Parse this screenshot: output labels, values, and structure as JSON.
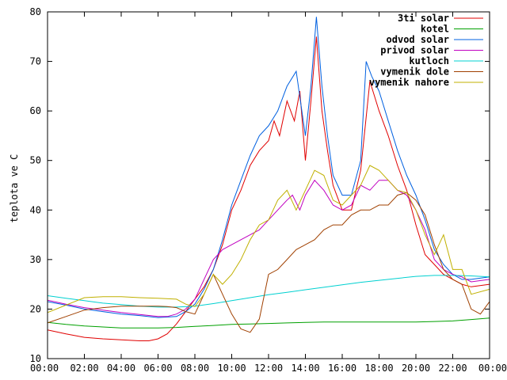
{
  "chart_data": {
    "type": "line",
    "title": "",
    "xlabel": "",
    "ylabel": "teplota ve C",
    "xlim": [
      0,
      24
    ],
    "ylim": [
      10,
      80
    ],
    "grid": false,
    "legend_position": "top-right",
    "x_ticks": [
      "00:00",
      "02:00",
      "04:00",
      "06:00",
      "08:00",
      "10:00",
      "12:00",
      "14:00",
      "16:00",
      "18:00",
      "20:00",
      "22:00",
      "00:00"
    ],
    "y_ticks": [
      "10",
      "20",
      "30",
      "40",
      "50",
      "60",
      "70",
      "80"
    ],
    "series": [
      {
        "name": "3ti solar",
        "color": "#e00000",
        "points": [
          [
            0,
            15.8
          ],
          [
            1,
            15
          ],
          [
            2,
            14.3
          ],
          [
            3,
            14
          ],
          [
            4,
            13.8
          ],
          [
            5,
            13.6
          ],
          [
            5.5,
            13.6
          ],
          [
            6,
            14
          ],
          [
            6.5,
            15
          ],
          [
            7,
            17
          ],
          [
            7.5,
            19.5
          ],
          [
            8,
            22
          ],
          [
            8.5,
            24.5
          ],
          [
            9,
            28
          ],
          [
            9.5,
            33
          ],
          [
            10,
            40
          ],
          [
            10.5,
            44
          ],
          [
            11,
            49
          ],
          [
            11.5,
            52
          ],
          [
            12,
            54
          ],
          [
            12.3,
            58
          ],
          [
            12.6,
            55
          ],
          [
            13,
            62
          ],
          [
            13.4,
            58
          ],
          [
            13.7,
            64
          ],
          [
            14,
            50
          ],
          [
            14.3,
            62
          ],
          [
            14.6,
            75
          ],
          [
            14.9,
            60
          ],
          [
            15.2,
            52
          ],
          [
            15.5,
            45
          ],
          [
            16,
            40
          ],
          [
            16.5,
            40
          ],
          [
            17,
            48
          ],
          [
            17.5,
            66
          ],
          [
            18,
            60
          ],
          [
            18.5,
            55
          ],
          [
            19,
            49
          ],
          [
            19.5,
            44
          ],
          [
            20,
            37
          ],
          [
            20.5,
            31
          ],
          [
            21,
            29
          ],
          [
            21.5,
            27
          ],
          [
            22,
            26
          ],
          [
            22.5,
            25
          ],
          [
            23,
            24.5
          ],
          [
            24,
            25
          ]
        ]
      },
      {
        "name": "kotel",
        "color": "#00a000",
        "points": [
          [
            0,
            17.3
          ],
          [
            1,
            16.9
          ],
          [
            2,
            16.6
          ],
          [
            3,
            16.4
          ],
          [
            4,
            16.2
          ],
          [
            5,
            16.2
          ],
          [
            6,
            16.2
          ],
          [
            7,
            16.3
          ],
          [
            8,
            16.5
          ],
          [
            9,
            16.7
          ],
          [
            10,
            16.9
          ],
          [
            11,
            17
          ],
          [
            12,
            17.1
          ],
          [
            13,
            17.2
          ],
          [
            14,
            17.3
          ],
          [
            15,
            17.4
          ],
          [
            16,
            17.4
          ],
          [
            17,
            17.4
          ],
          [
            18,
            17.4
          ],
          [
            19,
            17.4
          ],
          [
            20,
            17.4
          ],
          [
            21,
            17.5
          ],
          [
            22,
            17.6
          ],
          [
            23,
            17.9
          ],
          [
            24,
            18.2
          ]
        ]
      },
      {
        "name": "odvod solar",
        "color": "#0060e0",
        "points": [
          [
            0,
            21.5
          ],
          [
            1,
            20.8
          ],
          [
            2,
            20
          ],
          [
            3,
            19.5
          ],
          [
            4,
            19
          ],
          [
            5,
            18.7
          ],
          [
            6,
            18.3
          ],
          [
            7,
            18.5
          ],
          [
            7.5,
            19.5
          ],
          [
            8,
            21
          ],
          [
            8.5,
            24
          ],
          [
            9,
            28
          ],
          [
            9.5,
            34
          ],
          [
            10,
            41
          ],
          [
            10.5,
            46
          ],
          [
            11,
            51
          ],
          [
            11.5,
            55
          ],
          [
            12,
            57
          ],
          [
            12.5,
            60
          ],
          [
            13,
            65
          ],
          [
            13.5,
            68
          ],
          [
            14,
            55
          ],
          [
            14.3,
            65
          ],
          [
            14.6,
            79
          ],
          [
            14.9,
            65
          ],
          [
            15.2,
            55
          ],
          [
            15.5,
            47
          ],
          [
            16,
            43
          ],
          [
            16.5,
            43
          ],
          [
            17,
            50
          ],
          [
            17.3,
            70
          ],
          [
            17.6,
            67
          ],
          [
            18,
            64
          ],
          [
            18.5,
            58
          ],
          [
            19,
            52
          ],
          [
            19.5,
            47
          ],
          [
            20,
            43
          ],
          [
            20.5,
            38
          ],
          [
            21,
            32
          ],
          [
            21.5,
            29
          ],
          [
            22,
            27
          ],
          [
            22.5,
            26
          ],
          [
            23,
            26
          ],
          [
            24,
            26.5
          ]
        ]
      },
      {
        "name": "privod solar",
        "color": "#c000c0",
        "points": [
          [
            0,
            21.8
          ],
          [
            1,
            21
          ],
          [
            2,
            20.3
          ],
          [
            3,
            19.8
          ],
          [
            4,
            19.3
          ],
          [
            5,
            18.9
          ],
          [
            6,
            18.5
          ],
          [
            6.5,
            18.5
          ],
          [
            7,
            19
          ],
          [
            7.5,
            20
          ],
          [
            8,
            22
          ],
          [
            8.5,
            26
          ],
          [
            9,
            30
          ],
          [
            9.5,
            32
          ],
          [
            10,
            33
          ],
          [
            10.5,
            34
          ],
          [
            11,
            35
          ],
          [
            11.5,
            36
          ],
          [
            12,
            38
          ],
          [
            12.5,
            40
          ],
          [
            13,
            42
          ],
          [
            13.3,
            43
          ],
          [
            13.7,
            40
          ],
          [
            14,
            43
          ],
          [
            14.5,
            46
          ],
          [
            15,
            44
          ],
          [
            15.5,
            41
          ],
          [
            16,
            40
          ],
          [
            16.5,
            41
          ],
          [
            17,
            45
          ],
          [
            17.5,
            44
          ],
          [
            18,
            46
          ],
          [
            18.5,
            46
          ],
          [
            19,
            44
          ],
          [
            19.5,
            43
          ],
          [
            20,
            40
          ],
          [
            20.5,
            36
          ],
          [
            21,
            30
          ],
          [
            21.5,
            28
          ],
          [
            22,
            27
          ],
          [
            22.5,
            26.5
          ],
          [
            23,
            25.5
          ],
          [
            24,
            26
          ]
        ]
      },
      {
        "name": "kutloch",
        "color": "#00d0d0",
        "points": [
          [
            0,
            22.7
          ],
          [
            1,
            22.2
          ],
          [
            2,
            21.7
          ],
          [
            3,
            21.2
          ],
          [
            4,
            20.9
          ],
          [
            5,
            20.6
          ],
          [
            6,
            20.4
          ],
          [
            7,
            20.4
          ],
          [
            8,
            20.6
          ],
          [
            9,
            21.1
          ],
          [
            10,
            21.7
          ],
          [
            11,
            22.3
          ],
          [
            12,
            22.9
          ],
          [
            13,
            23.4
          ],
          [
            14,
            23.9
          ],
          [
            15,
            24.4
          ],
          [
            16,
            24.9
          ],
          [
            17,
            25.4
          ],
          [
            18,
            25.8
          ],
          [
            19,
            26.2
          ],
          [
            20,
            26.6
          ],
          [
            21,
            26.8
          ],
          [
            22,
            26.8
          ],
          [
            23,
            26.7
          ],
          [
            24,
            26.5
          ]
        ]
      },
      {
        "name": "vymenik dole",
        "color": "#a04000",
        "points": [
          [
            0,
            17.2
          ],
          [
            1,
            18.5
          ],
          [
            2,
            19.8
          ],
          [
            3,
            20.3
          ],
          [
            4,
            20.6
          ],
          [
            5,
            20.6
          ],
          [
            6,
            20.6
          ],
          [
            6.5,
            20.5
          ],
          [
            7,
            20.3
          ],
          [
            7.5,
            19.5
          ],
          [
            8,
            19
          ],
          [
            8.5,
            23
          ],
          [
            9,
            27
          ],
          [
            9.5,
            23
          ],
          [
            10,
            19
          ],
          [
            10.5,
            16
          ],
          [
            11,
            15.3
          ],
          [
            11.5,
            18
          ],
          [
            12,
            27
          ],
          [
            12.5,
            28
          ],
          [
            13,
            30
          ],
          [
            13.5,
            32
          ],
          [
            14,
            33
          ],
          [
            14.5,
            34
          ],
          [
            15,
            36
          ],
          [
            15.5,
            37
          ],
          [
            16,
            37
          ],
          [
            16.5,
            39
          ],
          [
            17,
            40
          ],
          [
            17.5,
            40
          ],
          [
            18,
            41
          ],
          [
            18.5,
            41
          ],
          [
            19,
            43
          ],
          [
            19.5,
            43.5
          ],
          [
            20,
            42
          ],
          [
            20.5,
            39
          ],
          [
            21,
            33
          ],
          [
            21.5,
            28
          ],
          [
            22,
            26
          ],
          [
            22.5,
            25
          ],
          [
            23,
            20
          ],
          [
            23.5,
            19
          ],
          [
            24,
            21.5
          ]
        ]
      },
      {
        "name": "vymenik nahore",
        "color": "#c0b000",
        "points": [
          [
            0,
            19.3
          ],
          [
            1,
            20.8
          ],
          [
            2,
            22.3
          ],
          [
            3,
            22.5
          ],
          [
            4,
            22.5
          ],
          [
            5,
            22.3
          ],
          [
            6,
            22.2
          ],
          [
            7,
            22
          ],
          [
            7.5,
            21
          ],
          [
            8,
            20.5
          ],
          [
            8.5,
            23
          ],
          [
            9,
            27
          ],
          [
            9.5,
            25
          ],
          [
            10,
            27
          ],
          [
            10.5,
            30
          ],
          [
            11,
            34
          ],
          [
            11.5,
            37
          ],
          [
            12,
            38
          ],
          [
            12.5,
            42
          ],
          [
            13,
            44
          ],
          [
            13.5,
            40
          ],
          [
            14,
            44
          ],
          [
            14.5,
            48
          ],
          [
            15,
            47
          ],
          [
            15.5,
            42
          ],
          [
            16,
            41
          ],
          [
            16.5,
            43
          ],
          [
            17,
            45
          ],
          [
            17.5,
            49
          ],
          [
            18,
            48
          ],
          [
            18.5,
            46
          ],
          [
            19,
            44
          ],
          [
            19.5,
            43.5
          ],
          [
            20,
            40
          ],
          [
            20.5,
            35
          ],
          [
            21,
            31
          ],
          [
            21.5,
            35
          ],
          [
            22,
            28
          ],
          [
            22.5,
            28
          ],
          [
            23,
            23
          ],
          [
            24,
            24
          ]
        ]
      }
    ]
  }
}
